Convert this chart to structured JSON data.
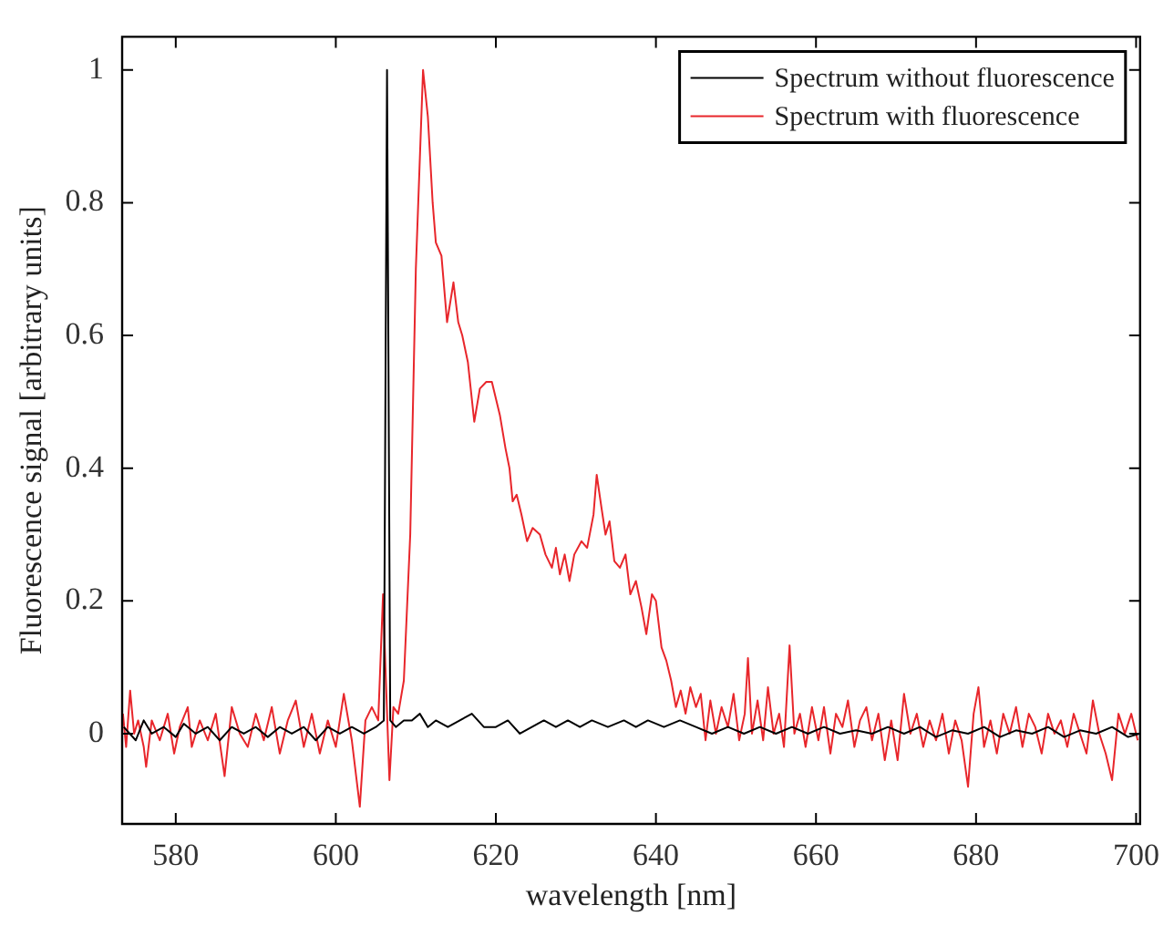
{
  "chart_data": {
    "type": "line",
    "xlabel": "wavelength [nm]",
    "ylabel": "Fluorescence signal [arbitrary units]",
    "xlim": [
      573.3,
      700.5
    ],
    "ylim": [
      -0.136,
      1.05
    ],
    "xticks": [
      580,
      600,
      620,
      640,
      660,
      680,
      700
    ],
    "yticks": [
      0,
      0.2,
      0.4,
      0.6,
      0.8,
      1
    ],
    "grid": false,
    "legend": "top right",
    "marker": "none",
    "line_style": "solid",
    "series": [
      {
        "name": "Spectrum without fluorescence",
        "color": "#000000",
        "x": [
          573.5,
          575,
          576,
          577,
          578.5,
          580,
          581,
          582.5,
          584,
          585.5,
          587,
          588.5,
          590,
          591.5,
          593,
          594.5,
          596,
          597.5,
          599,
          600.5,
          602,
          603.5,
          605,
          606,
          606.4,
          606.8,
          607.5,
          608.5,
          609.5,
          610.5,
          611.5,
          612.5,
          614,
          615.5,
          617,
          618.5,
          620,
          621.5,
          623,
          624.5,
          626,
          627.5,
          629,
          630.5,
          632,
          634,
          636,
          637.5,
          639,
          641,
          643,
          645,
          647,
          649,
          651,
          653,
          655,
          657,
          659,
          661,
          663,
          665,
          667,
          669,
          671,
          673,
          675,
          677,
          679,
          681,
          683,
          685,
          687,
          689,
          691,
          693,
          695,
          697,
          699,
          700.4
        ],
        "values": [
          0.01,
          -0.01,
          0.02,
          0,
          0.01,
          -0.005,
          0.015,
          0,
          0.01,
          -0.01,
          0.01,
          0,
          0.01,
          -0.005,
          0.01,
          0,
          0.01,
          -0.01,
          0.01,
          0,
          0.01,
          0,
          0.01,
          0.02,
          1.0,
          0.02,
          0.01,
          0.02,
          0.02,
          0.03,
          0.01,
          0.02,
          0.01,
          0.02,
          0.03,
          0.01,
          0.01,
          0.02,
          0,
          0.01,
          0.02,
          0.01,
          0.02,
          0.01,
          0.02,
          0.01,
          0.02,
          0.01,
          0.02,
          0.01,
          0.02,
          0.01,
          0,
          0.01,
          0,
          0.01,
          0,
          0.01,
          0,
          0.01,
          0,
          0.005,
          0,
          0.01,
          0,
          0.01,
          -0.005,
          0.005,
          0,
          0.01,
          -0.005,
          0.005,
          0,
          0.01,
          -0.005,
          0.005,
          0,
          0.01,
          -0.005,
          0
        ]
      },
      {
        "name": "Spectrum with fluorescence",
        "color": "#e8262b",
        "x": [
          573.4,
          573.8,
          574.3,
          574.8,
          575.3,
          576,
          576.3,
          577,
          578,
          579,
          579.8,
          580.5,
          581.5,
          582,
          583,
          584,
          585,
          586.1,
          587,
          588,
          589,
          590,
          591,
          592,
          593,
          594,
          595,
          596,
          597,
          598,
          599,
          600,
          601,
          602,
          603,
          603.7,
          604.5,
          605.3,
          605.9,
          606.2,
          606.7,
          607.2,
          607.8,
          608.5,
          609.3,
          610,
          610.9,
          611.5,
          612.1,
          612.5,
          613.2,
          613.9,
          614.7,
          615.3,
          615.8,
          616.5,
          617.3,
          618,
          618.8,
          619.5,
          620.5,
          621.2,
          621.7,
          622.1,
          622.6,
          623.2,
          623.9,
          624.6,
          625.5,
          626.2,
          627,
          627.5,
          628,
          628.6,
          629.2,
          629.8,
          630.7,
          631.4,
          632.2,
          632.6,
          633.2,
          633.7,
          634.2,
          634.8,
          635.5,
          636.2,
          636.8,
          637.5,
          638.2,
          638.8,
          639.5,
          640,
          640.7,
          641.3,
          641.9,
          642.5,
          643.1,
          643.7,
          644.3,
          645,
          645.6,
          646.2,
          646.8,
          647.5,
          648.2,
          649,
          649.7,
          650.4,
          651.1,
          651.5,
          652,
          652.7,
          653.4,
          654,
          654.7,
          655.4,
          656,
          656.7,
          657.3,
          658,
          658.7,
          659.5,
          660.3,
          661,
          661.8,
          662.5,
          663.3,
          664,
          664.8,
          665.5,
          666.3,
          667,
          667.8,
          668.6,
          669.4,
          670.2,
          671,
          671.8,
          672.6,
          673.4,
          674.2,
          675,
          675.8,
          676.6,
          677.4,
          678.2,
          679,
          679.7,
          680.3,
          681,
          681.8,
          682.6,
          683.4,
          684.2,
          685,
          685.8,
          686.6,
          687.4,
          688.2,
          689,
          689.8,
          690.6,
          691.4,
          692.2,
          693,
          693.8,
          694.6,
          695.4,
          696.2,
          697,
          697.8,
          698.6,
          699.4,
          700.2
        ],
        "values": [
          0.03,
          -0.02,
          0.065,
          0,
          0.02,
          -0.02,
          -0.05,
          0.02,
          -0.01,
          0.03,
          -0.03,
          0.01,
          0.04,
          -0.02,
          0.02,
          -0.01,
          0.03,
          -0.064,
          0.04,
          0,
          -0.02,
          0.03,
          -0.01,
          0.04,
          -0.03,
          0.02,
          0.05,
          -0.02,
          0.03,
          -0.03,
          0.02,
          -0.02,
          0.06,
          -0.01,
          -0.11,
          0.02,
          0.04,
          0.02,
          0.21,
          0.1,
          -0.07,
          0.04,
          0.03,
          0.08,
          0.3,
          0.7,
          1.0,
          0.93,
          0.8,
          0.74,
          0.72,
          0.62,
          0.68,
          0.62,
          0.6,
          0.56,
          0.47,
          0.52,
          0.53,
          0.53,
          0.48,
          0.43,
          0.4,
          0.35,
          0.36,
          0.33,
          0.29,
          0.31,
          0.3,
          0.27,
          0.25,
          0.28,
          0.24,
          0.27,
          0.23,
          0.27,
          0.29,
          0.28,
          0.33,
          0.39,
          0.34,
          0.3,
          0.32,
          0.26,
          0.25,
          0.27,
          0.21,
          0.23,
          0.19,
          0.15,
          0.21,
          0.2,
          0.13,
          0.11,
          0.08,
          0.04,
          0.065,
          0.03,
          0.07,
          0.04,
          0.06,
          -0.01,
          0.05,
          0,
          0.04,
          0.01,
          0.06,
          -0.01,
          0.03,
          0.114,
          0,
          0.05,
          -0.01,
          0.07,
          0,
          0.03,
          -0.02,
          0.133,
          0,
          0.03,
          -0.02,
          0.04,
          -0.01,
          0.04,
          -0.03,
          0.03,
          0.01,
          0.05,
          -0.02,
          0.02,
          0.04,
          -0.01,
          0.03,
          -0.04,
          0.02,
          -0.04,
          0.06,
          0,
          0.03,
          -0.02,
          0.02,
          -0.01,
          0.03,
          -0.03,
          0.02,
          -0.01,
          -0.08,
          0.03,
          0.07,
          -0.02,
          0.02,
          -0.03,
          0.03,
          0,
          0.04,
          -0.02,
          0.03,
          0.01,
          -0.03,
          0.03,
          0,
          0.02,
          -0.02,
          0.03,
          0,
          -0.03,
          0.05,
          0,
          -0.03,
          -0.07,
          0.03,
          0,
          0.03,
          -0.01
        ]
      }
    ]
  }
}
